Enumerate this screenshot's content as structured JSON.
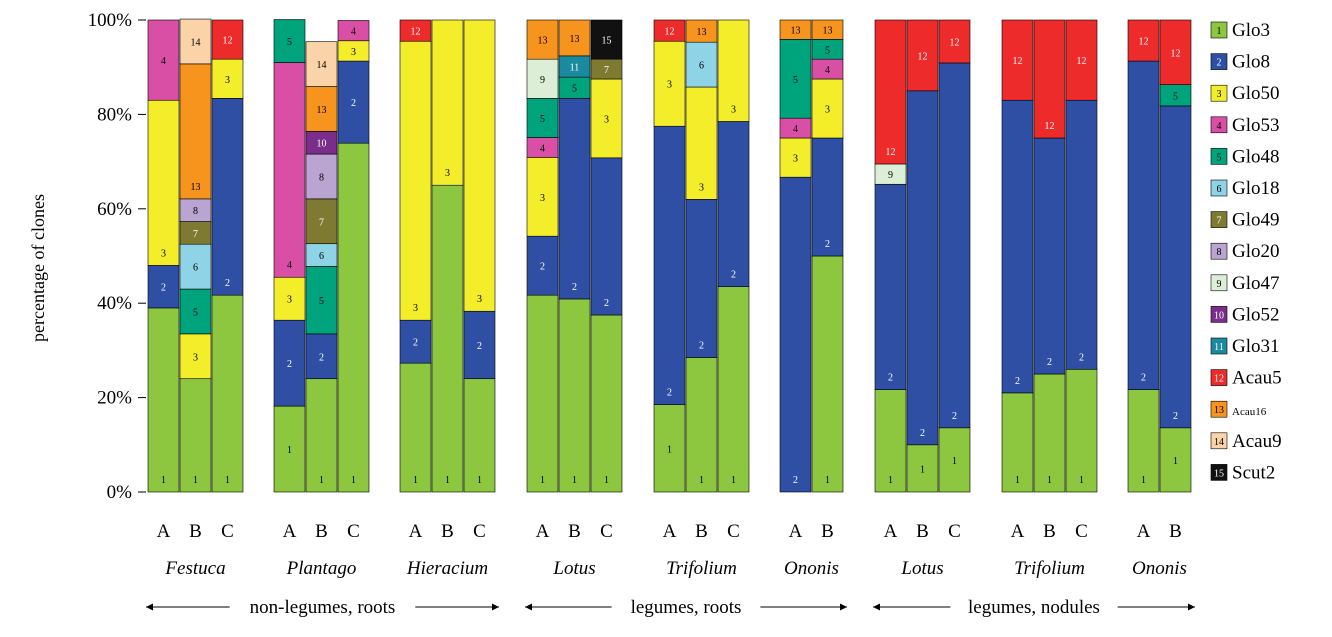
{
  "chart_data": {
    "type": "bar",
    "stacked": true,
    "ylabel": "percentage of clones",
    "ylim": [
      0,
      100
    ],
    "yticks": [
      "0%",
      "20%",
      "40%",
      "60%",
      "80%",
      "100%"
    ],
    "legend_position": "right",
    "legend": [
      {
        "code": "1",
        "name": "Glo3",
        "color": "#8dc63f",
        "text_color": "#000000"
      },
      {
        "code": "2",
        "name": "Glo8",
        "color": "#2e4fa3",
        "text_color": "#ffffff"
      },
      {
        "code": "3",
        "name": "Glo50",
        "color": "#f4ee2a",
        "text_color": "#000000"
      },
      {
        "code": "4",
        "name": "Glo53",
        "color": "#d94fa6",
        "text_color": "#000000"
      },
      {
        "code": "5",
        "name": "Glo48",
        "color": "#00a47c",
        "text_color": "#000000"
      },
      {
        "code": "6",
        "name": "Glo18",
        "color": "#8fd4e6",
        "text_color": "#000000"
      },
      {
        "code": "7",
        "name": "Glo49",
        "color": "#7f7a32",
        "text_color": "#ffffff"
      },
      {
        "code": "8",
        "name": "Glo20",
        "color": "#b9a4d2",
        "text_color": "#000000"
      },
      {
        "code": "9",
        "name": "Glo47",
        "color": "#dcefd6",
        "text_color": "#000000"
      },
      {
        "code": "10",
        "name": "Glo52",
        "color": "#7b2d8c",
        "text_color": "#ffffff"
      },
      {
        "code": "11",
        "name": "Glo31",
        "color": "#1a8aa0",
        "text_color": "#ffffff"
      },
      {
        "code": "12",
        "name": "Acau5",
        "color": "#ee2b2b",
        "text_color": "#ffffff"
      },
      {
        "code": "13",
        "name": "Acau16",
        "color": "#f7941d",
        "text_color": "#000000"
      },
      {
        "code": "14",
        "name": "Acau9",
        "color": "#fbd3a8",
        "text_color": "#000000"
      },
      {
        "code": "15",
        "name": "Scut2",
        "color": "#111111",
        "text_color": "#ffffff"
      }
    ],
    "groups": [
      {
        "plant": "Festuca",
        "bars": [
          {
            "label": "A",
            "segments": [
              [
                "1",
                39
              ],
              [
                "2",
                9
              ],
              [
                "3",
                35
              ],
              [
                "4",
                17
              ]
            ]
          },
          {
            "label": "B",
            "segments": [
              [
                "1",
                24
              ],
              [
                "3",
                9.5
              ],
              [
                "5",
                9.5
              ],
              [
                "6",
                9.5
              ],
              [
                "7",
                4.8
              ],
              [
                "8",
                4.8
              ],
              [
                "13",
                28.6
              ],
              [
                "14",
                9.5
              ]
            ]
          },
          {
            "label": "C",
            "segments": [
              [
                "1",
                41.7
              ],
              [
                "2",
                41.7
              ],
              [
                "3",
                8.3
              ],
              [
                "12",
                8.3
              ]
            ]
          }
        ]
      },
      {
        "plant": "Plantago",
        "bars": [
          {
            "label": "A",
            "segments": [
              [
                "1",
                18.2
              ],
              [
                "2",
                18.2
              ],
              [
                "3",
                9.1
              ],
              [
                "4",
                45.5
              ],
              [
                "5",
                9.1
              ]
            ]
          },
          {
            "label": "B",
            "segments": [
              [
                "1",
                24
              ],
              [
                "2",
                9.5
              ],
              [
                "5",
                14.3
              ],
              [
                "6",
                4.8
              ],
              [
                "7",
                9.5
              ],
              [
                "8",
                9.5
              ],
              [
                "10",
                4.8
              ],
              [
                "13",
                9.5
              ],
              [
                "14",
                9.5
              ]
            ]
          },
          {
            "label": "C",
            "segments": [
              [
                "1",
                73.9
              ],
              [
                "2",
                17.4
              ],
              [
                "3",
                4.3
              ],
              [
                "4",
                4.3
              ]
            ]
          }
        ]
      },
      {
        "plant": "Hieracium",
        "bars": [
          {
            "label": "A",
            "segments": [
              [
                "1",
                27.3
              ],
              [
                "2",
                9.1
              ],
              [
                "3",
                59.1
              ],
              [
                "12",
                4.5
              ]
            ]
          },
          {
            "label": "B",
            "segments": [
              [
                "1",
                65
              ],
              [
                "3",
                35
              ]
            ]
          },
          {
            "label": "C",
            "segments": [
              [
                "1",
                24
              ],
              [
                "2",
                14.3
              ],
              [
                "3",
                61.7
              ]
            ]
          }
        ]
      },
      {
        "plant": "Lotus",
        "bars": [
          {
            "label": "A",
            "segments": [
              [
                "1",
                41.7
              ],
              [
                "2",
                12.5
              ],
              [
                "3",
                16.7
              ],
              [
                "4",
                4.2
              ],
              [
                "5",
                8.3
              ],
              [
                "9",
                8.3
              ],
              [
                "13",
                8.3
              ]
            ]
          },
          {
            "label": "B",
            "segments": [
              [
                "1",
                40.9
              ],
              [
                "2",
                42.5
              ],
              [
                "5",
                4.5
              ],
              [
                "11",
                4.5
              ],
              [
                "13",
                7.6
              ]
            ]
          },
          {
            "label": "C",
            "segments": [
              [
                "1",
                37.5
              ],
              [
                "2",
                33.3
              ],
              [
                "3",
                16.7
              ],
              [
                "7",
                4.2
              ],
              [
                "15",
                8.3
              ]
            ]
          }
        ]
      },
      {
        "plant": "Trifolium",
        "bars": [
          {
            "label": "A",
            "segments": [
              [
                "1",
                18.5
              ],
              [
                "2",
                59
              ],
              [
                "3",
                18
              ],
              [
                "12",
                4.5
              ]
            ]
          },
          {
            "label": "B",
            "segments": [
              [
                "1",
                28.5
              ],
              [
                "2",
                33.5
              ],
              [
                "3",
                23.8
              ],
              [
                "6",
                9.5
              ],
              [
                "13",
                4.7
              ]
            ]
          },
          {
            "label": "C",
            "segments": [
              [
                "1",
                43.5
              ],
              [
                "2",
                35
              ],
              [
                "3",
                21.5
              ]
            ]
          }
        ]
      },
      {
        "plant": "Ononis",
        "bars": [
          {
            "label": "A",
            "segments": [
              [
                "2",
                66.7
              ],
              [
                "3",
                8.3
              ],
              [
                "4",
                4.2
              ],
              [
                "5",
                16.7
              ],
              [
                "13",
                4.1
              ]
            ]
          },
          {
            "label": "B",
            "segments": [
              [
                "1",
                50
              ],
              [
                "2",
                25
              ],
              [
                "3",
                12.5
              ],
              [
                "4",
                4.2
              ],
              [
                "5",
                4.2
              ],
              [
                "13",
                4.1
              ]
            ]
          }
        ]
      },
      {
        "plant": "Lotus",
        "bars": [
          {
            "label": "A",
            "segments": [
              [
                "1",
                21.7
              ],
              [
                "2",
                43.5
              ],
              [
                "9",
                4.3
              ],
              [
                "12",
                30.5
              ]
            ]
          },
          {
            "label": "B",
            "segments": [
              [
                "1",
                10
              ],
              [
                "2",
                75
              ],
              [
                "12",
                15
              ]
            ]
          },
          {
            "label": "C",
            "segments": [
              [
                "1",
                13.6
              ],
              [
                "2",
                77.3
              ],
              [
                "12",
                9.1
              ]
            ]
          }
        ]
      },
      {
        "plant": "Trifolium",
        "bars": [
          {
            "label": "A",
            "segments": [
              [
                "1",
                21
              ],
              [
                "2",
                62
              ],
              [
                "12",
                17
              ]
            ]
          },
          {
            "label": "B",
            "segments": [
              [
                "1",
                25
              ],
              [
                "2",
                50
              ],
              [
                "12",
                25
              ]
            ]
          },
          {
            "label": "C",
            "segments": [
              [
                "1",
                26
              ],
              [
                "2",
                57
              ],
              [
                "12",
                17
              ]
            ]
          }
        ]
      },
      {
        "plant": "Ononis",
        "bars": [
          {
            "label": "A",
            "segments": [
              [
                "1",
                21.7
              ],
              [
                "2",
                69.6
              ],
              [
                "12",
                8.7
              ]
            ]
          },
          {
            "label": "B",
            "segments": [
              [
                "1",
                13.6
              ],
              [
                "2",
                68.2
              ],
              [
                "5",
                4.5
              ],
              [
                "12",
                13.7
              ]
            ]
          }
        ]
      }
    ],
    "categories": [
      {
        "label": "non-legumes, roots",
        "groups": [
          0,
          2
        ]
      },
      {
        "label": "legumes, roots",
        "groups": [
          3,
          5
        ]
      },
      {
        "label": "legumes, nodules",
        "groups": [
          6,
          8
        ]
      }
    ]
  }
}
